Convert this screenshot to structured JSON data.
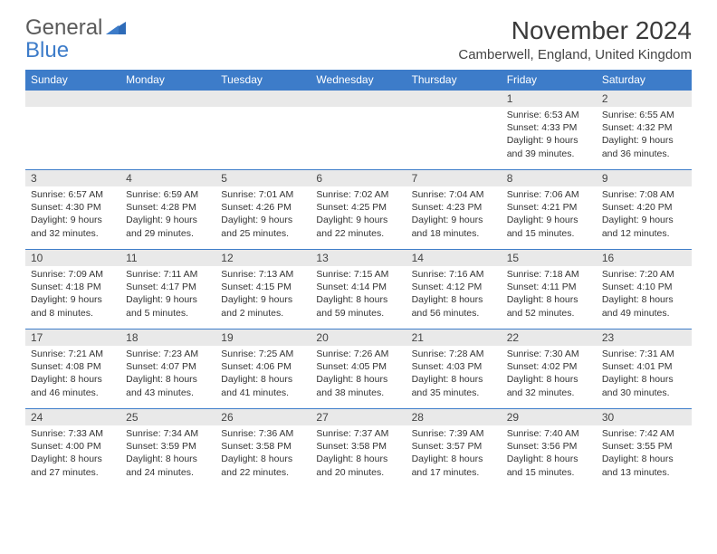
{
  "logo": {
    "line1": "General",
    "line2": "Blue"
  },
  "title": "November 2024",
  "location": "Camberwell, England, United Kingdom",
  "colors": {
    "header_bg": "#3d7cc9",
    "header_text": "#ffffff",
    "daynum_bg": "#e9e9e9",
    "row_divider": "#3d7cc9",
    "body_text": "#333333",
    "page_bg": "#ffffff"
  },
  "typography": {
    "title_fontsize": 28,
    "location_fontsize": 15,
    "dayheader_fontsize": 12,
    "cell_fontsize": 10.5
  },
  "weekdays": [
    "Sunday",
    "Monday",
    "Tuesday",
    "Wednesday",
    "Thursday",
    "Friday",
    "Saturday"
  ],
  "weeks": [
    [
      {
        "empty": true
      },
      {
        "empty": true
      },
      {
        "empty": true
      },
      {
        "empty": true
      },
      {
        "empty": true
      },
      {
        "num": "1",
        "sunrise": "Sunrise: 6:53 AM",
        "sunset": "Sunset: 4:33 PM",
        "daylight": "Daylight: 9 hours and 39 minutes."
      },
      {
        "num": "2",
        "sunrise": "Sunrise: 6:55 AM",
        "sunset": "Sunset: 4:32 PM",
        "daylight": "Daylight: 9 hours and 36 minutes."
      }
    ],
    [
      {
        "num": "3",
        "sunrise": "Sunrise: 6:57 AM",
        "sunset": "Sunset: 4:30 PM",
        "daylight": "Daylight: 9 hours and 32 minutes."
      },
      {
        "num": "4",
        "sunrise": "Sunrise: 6:59 AM",
        "sunset": "Sunset: 4:28 PM",
        "daylight": "Daylight: 9 hours and 29 minutes."
      },
      {
        "num": "5",
        "sunrise": "Sunrise: 7:01 AM",
        "sunset": "Sunset: 4:26 PM",
        "daylight": "Daylight: 9 hours and 25 minutes."
      },
      {
        "num": "6",
        "sunrise": "Sunrise: 7:02 AM",
        "sunset": "Sunset: 4:25 PM",
        "daylight": "Daylight: 9 hours and 22 minutes."
      },
      {
        "num": "7",
        "sunrise": "Sunrise: 7:04 AM",
        "sunset": "Sunset: 4:23 PM",
        "daylight": "Daylight: 9 hours and 18 minutes."
      },
      {
        "num": "8",
        "sunrise": "Sunrise: 7:06 AM",
        "sunset": "Sunset: 4:21 PM",
        "daylight": "Daylight: 9 hours and 15 minutes."
      },
      {
        "num": "9",
        "sunrise": "Sunrise: 7:08 AM",
        "sunset": "Sunset: 4:20 PM",
        "daylight": "Daylight: 9 hours and 12 minutes."
      }
    ],
    [
      {
        "num": "10",
        "sunrise": "Sunrise: 7:09 AM",
        "sunset": "Sunset: 4:18 PM",
        "daylight": "Daylight: 9 hours and 8 minutes."
      },
      {
        "num": "11",
        "sunrise": "Sunrise: 7:11 AM",
        "sunset": "Sunset: 4:17 PM",
        "daylight": "Daylight: 9 hours and 5 minutes."
      },
      {
        "num": "12",
        "sunrise": "Sunrise: 7:13 AM",
        "sunset": "Sunset: 4:15 PM",
        "daylight": "Daylight: 9 hours and 2 minutes."
      },
      {
        "num": "13",
        "sunrise": "Sunrise: 7:15 AM",
        "sunset": "Sunset: 4:14 PM",
        "daylight": "Daylight: 8 hours and 59 minutes."
      },
      {
        "num": "14",
        "sunrise": "Sunrise: 7:16 AM",
        "sunset": "Sunset: 4:12 PM",
        "daylight": "Daylight: 8 hours and 56 minutes."
      },
      {
        "num": "15",
        "sunrise": "Sunrise: 7:18 AM",
        "sunset": "Sunset: 4:11 PM",
        "daylight": "Daylight: 8 hours and 52 minutes."
      },
      {
        "num": "16",
        "sunrise": "Sunrise: 7:20 AM",
        "sunset": "Sunset: 4:10 PM",
        "daylight": "Daylight: 8 hours and 49 minutes."
      }
    ],
    [
      {
        "num": "17",
        "sunrise": "Sunrise: 7:21 AM",
        "sunset": "Sunset: 4:08 PM",
        "daylight": "Daylight: 8 hours and 46 minutes."
      },
      {
        "num": "18",
        "sunrise": "Sunrise: 7:23 AM",
        "sunset": "Sunset: 4:07 PM",
        "daylight": "Daylight: 8 hours and 43 minutes."
      },
      {
        "num": "19",
        "sunrise": "Sunrise: 7:25 AM",
        "sunset": "Sunset: 4:06 PM",
        "daylight": "Daylight: 8 hours and 41 minutes."
      },
      {
        "num": "20",
        "sunrise": "Sunrise: 7:26 AM",
        "sunset": "Sunset: 4:05 PM",
        "daylight": "Daylight: 8 hours and 38 minutes."
      },
      {
        "num": "21",
        "sunrise": "Sunrise: 7:28 AM",
        "sunset": "Sunset: 4:03 PM",
        "daylight": "Daylight: 8 hours and 35 minutes."
      },
      {
        "num": "22",
        "sunrise": "Sunrise: 7:30 AM",
        "sunset": "Sunset: 4:02 PM",
        "daylight": "Daylight: 8 hours and 32 minutes."
      },
      {
        "num": "23",
        "sunrise": "Sunrise: 7:31 AM",
        "sunset": "Sunset: 4:01 PM",
        "daylight": "Daylight: 8 hours and 30 minutes."
      }
    ],
    [
      {
        "num": "24",
        "sunrise": "Sunrise: 7:33 AM",
        "sunset": "Sunset: 4:00 PM",
        "daylight": "Daylight: 8 hours and 27 minutes."
      },
      {
        "num": "25",
        "sunrise": "Sunrise: 7:34 AM",
        "sunset": "Sunset: 3:59 PM",
        "daylight": "Daylight: 8 hours and 24 minutes."
      },
      {
        "num": "26",
        "sunrise": "Sunrise: 7:36 AM",
        "sunset": "Sunset: 3:58 PM",
        "daylight": "Daylight: 8 hours and 22 minutes."
      },
      {
        "num": "27",
        "sunrise": "Sunrise: 7:37 AM",
        "sunset": "Sunset: 3:58 PM",
        "daylight": "Daylight: 8 hours and 20 minutes."
      },
      {
        "num": "28",
        "sunrise": "Sunrise: 7:39 AM",
        "sunset": "Sunset: 3:57 PM",
        "daylight": "Daylight: 8 hours and 17 minutes."
      },
      {
        "num": "29",
        "sunrise": "Sunrise: 7:40 AM",
        "sunset": "Sunset: 3:56 PM",
        "daylight": "Daylight: 8 hours and 15 minutes."
      },
      {
        "num": "30",
        "sunrise": "Sunrise: 7:42 AM",
        "sunset": "Sunset: 3:55 PM",
        "daylight": "Daylight: 8 hours and 13 minutes."
      }
    ]
  ]
}
